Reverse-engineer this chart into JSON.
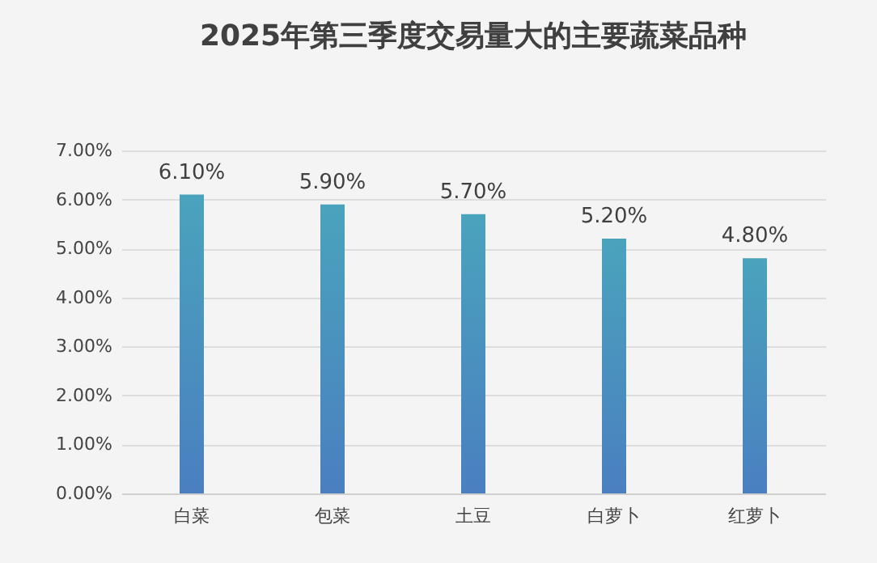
{
  "chart_data": {
    "type": "bar",
    "title": "2025年第三季度交易量大的主要蔬菜品种",
    "categories": [
      "白菜",
      "包菜",
      "土豆",
      "白萝卜",
      "红萝卜"
    ],
    "values": [
      6.1,
      5.9,
      5.7,
      5.2,
      4.8
    ],
    "value_labels": [
      "6.10%",
      "5.90%",
      "5.70%",
      "5.20%",
      "4.80%"
    ],
    "color": "#4aa3bd",
    "ylim": [
      0,
      7
    ],
    "yticks": [
      {
        "value": 0,
        "label": "0.00%"
      },
      {
        "value": 1,
        "label": "1.00%"
      },
      {
        "value": 2,
        "label": "2.00%"
      },
      {
        "value": 3,
        "label": "3.00%"
      },
      {
        "value": 4,
        "label": "4.00%"
      },
      {
        "value": 5,
        "label": "5.00%"
      },
      {
        "value": 6,
        "label": "6.00%"
      },
      {
        "value": 7,
        "label": "7.00%"
      }
    ],
    "grid": "y"
  }
}
